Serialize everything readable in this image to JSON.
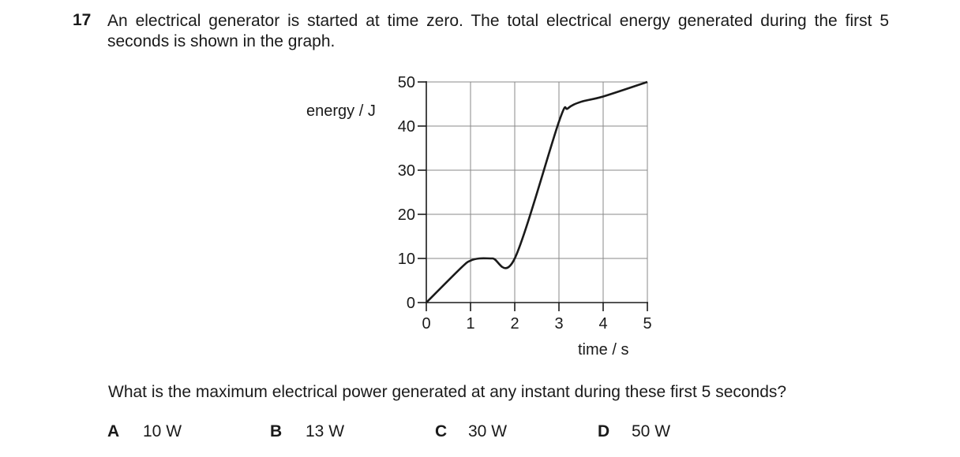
{
  "question": {
    "number": "17",
    "stem": "An electrical generator is started at time zero. The total electrical energy generated during the first 5 seconds is shown in the graph.",
    "prompt": "What is the maximum electrical power generated at any instant during these first 5 seconds?",
    "options": [
      {
        "letter": "A",
        "value": "10 W"
      },
      {
        "letter": "B",
        "value": "13 W"
      },
      {
        "letter": "C",
        "value": "30 W"
      },
      {
        "letter": "D",
        "value": "50 W"
      }
    ]
  },
  "chart_data": {
    "type": "line",
    "xlabel": "time / s",
    "ylabel": "energy / J",
    "xlim": [
      0,
      5
    ],
    "ylim": [
      0,
      50
    ],
    "x_ticks": [
      "0",
      "1",
      "2",
      "3",
      "4",
      "5"
    ],
    "y_ticks": [
      "0",
      "10",
      "20",
      "30",
      "40",
      "50"
    ],
    "grid": true,
    "series": [
      {
        "x": [
          0,
          0.8,
          1.0,
          1.2,
          1.5,
          2.0,
          3.0,
          3.2,
          3.5,
          4.0,
          5.0
        ],
        "y": [
          0,
          8,
          9.5,
          10,
          10,
          10,
          41,
          44,
          45.5,
          46.7,
          50
        ]
      }
    ]
  }
}
